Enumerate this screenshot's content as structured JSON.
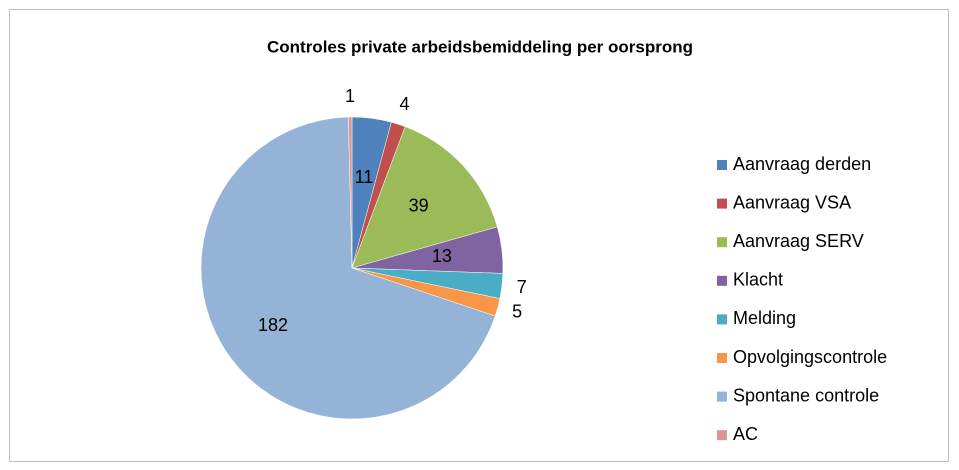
{
  "chart_data": {
    "type": "pie",
    "title": "Controles private arbeidsbemiddeling  per oorsprong",
    "categories": [
      "Aanvraag derden",
      "Aanvraag VSA",
      "Aanvraag SERV",
      "Klacht",
      "Melding",
      "Opvolgingscontrole",
      "Spontane controle",
      "AC"
    ],
    "values": [
      11,
      4,
      39,
      13,
      7,
      5,
      182,
      1
    ],
    "colors": [
      "#4f81bd",
      "#c0504d",
      "#9bbb59",
      "#8064a2",
      "#4bacc6",
      "#f79646",
      "#95b3d7",
      "#d99694"
    ],
    "legend": "right"
  }
}
